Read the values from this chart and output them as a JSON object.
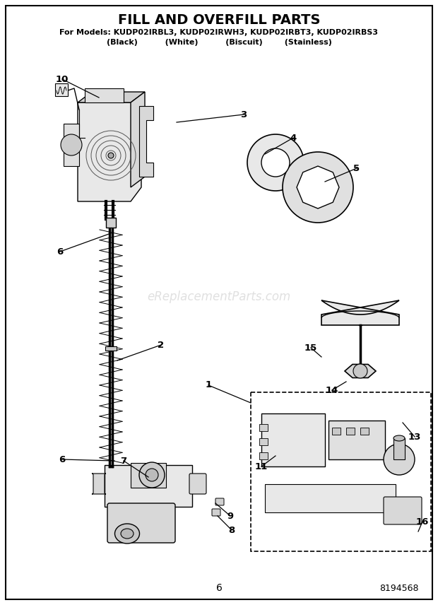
{
  "title": "FILL AND OVERFILL PARTS",
  "subtitle1": "For Models: KUDP02IRBL3, KUDP02IRWH3, KUDP02IRBT3, KUDP02IRBS3",
  "subtitle2": "(Black)          (White)          (Biscuit)        (Stainless)",
  "watermark": "eReplacementParts.com",
  "page_num": "6",
  "doc_num": "8194568",
  "bg_color": "#ffffff"
}
